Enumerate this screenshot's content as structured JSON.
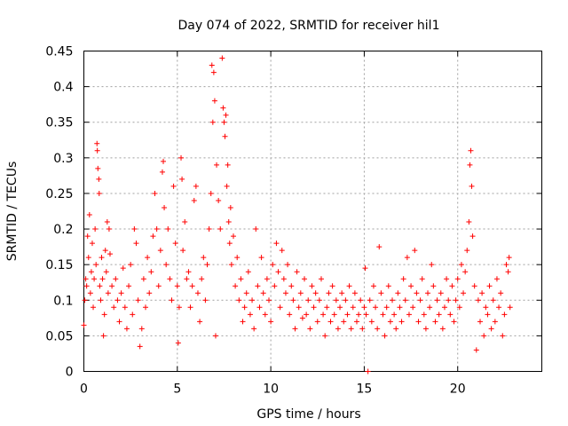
{
  "chart_data": {
    "type": "scatter",
    "title": "Day 074 of 2022, SRMTID for receiver hil1",
    "xlabel": "GPS time / hours",
    "ylabel": "SRMTID / TECUs",
    "xlim": [
      0,
      24.5
    ],
    "ylim": [
      0,
      0.45
    ],
    "xticks": [
      0,
      5,
      10,
      15,
      20
    ],
    "xtick_labels": [
      "0",
      "5",
      "10",
      "15",
      "20"
    ],
    "yticks": [
      0,
      0.05,
      0.1,
      0.15,
      0.2,
      0.25,
      0.3,
      0.35,
      0.4,
      0.45
    ],
    "ytick_labels": [
      "0",
      "0.05",
      "0.1",
      "0.15",
      "0.2",
      "0.25",
      "0.3",
      "0.35",
      "0.4",
      "0.45"
    ],
    "grid": true,
    "marker": "plus",
    "color": "#ff0000",
    "series": [
      {
        "name": "SRMTID",
        "points": [
          [
            0.0,
            0.065
          ],
          [
            0.05,
            0.1
          ],
          [
            0.1,
            0.13
          ],
          [
            0.15,
            0.12
          ],
          [
            0.2,
            0.19
          ],
          [
            0.25,
            0.16
          ],
          [
            0.3,
            0.22
          ],
          [
            0.35,
            0.11
          ],
          [
            0.4,
            0.14
          ],
          [
            0.45,
            0.18
          ],
          [
            0.5,
            0.09
          ],
          [
            0.55,
            0.13
          ],
          [
            0.6,
            0.2
          ],
          [
            0.65,
            0.15
          ],
          [
            0.7,
            0.32
          ],
          [
            0.72,
            0.31
          ],
          [
            0.75,
            0.285
          ],
          [
            0.8,
            0.27
          ],
          [
            0.82,
            0.25
          ],
          [
            0.85,
            0.12
          ],
          [
            0.9,
            0.1
          ],
          [
            0.95,
            0.16
          ],
          [
            1.0,
            0.13
          ],
          [
            1.05,
            0.05
          ],
          [
            1.1,
            0.08
          ],
          [
            1.15,
            0.17
          ],
          [
            1.2,
            0.14
          ],
          [
            1.25,
            0.21
          ],
          [
            1.3,
            0.11
          ],
          [
            1.35,
            0.2
          ],
          [
            1.4,
            0.165
          ],
          [
            1.5,
            0.12
          ],
          [
            1.6,
            0.09
          ],
          [
            1.7,
            0.13
          ],
          [
            1.8,
            0.1
          ],
          [
            1.9,
            0.07
          ],
          [
            2.0,
            0.11
          ],
          [
            2.1,
            0.145
          ],
          [
            2.2,
            0.09
          ],
          [
            2.3,
            0.06
          ],
          [
            2.4,
            0.12
          ],
          [
            2.5,
            0.15
          ],
          [
            2.6,
            0.08
          ],
          [
            2.7,
            0.2
          ],
          [
            2.8,
            0.18
          ],
          [
            2.9,
            0.1
          ],
          [
            3.0,
            0.035
          ],
          [
            3.1,
            0.06
          ],
          [
            3.2,
            0.13
          ],
          [
            3.3,
            0.09
          ],
          [
            3.4,
            0.16
          ],
          [
            3.5,
            0.11
          ],
          [
            3.6,
            0.14
          ],
          [
            3.7,
            0.19
          ],
          [
            3.8,
            0.25
          ],
          [
            3.9,
            0.2
          ],
          [
            4.0,
            0.12
          ],
          [
            4.1,
            0.17
          ],
          [
            4.2,
            0.28
          ],
          [
            4.25,
            0.295
          ],
          [
            4.3,
            0.23
          ],
          [
            4.4,
            0.15
          ],
          [
            4.5,
            0.2
          ],
          [
            4.6,
            0.13
          ],
          [
            4.7,
            0.1
          ],
          [
            4.8,
            0.26
          ],
          [
            4.9,
            0.18
          ],
          [
            5.0,
            0.12
          ],
          [
            5.05,
            0.04
          ],
          [
            5.1,
            0.09
          ],
          [
            5.2,
            0.3
          ],
          [
            5.25,
            0.27
          ],
          [
            5.3,
            0.17
          ],
          [
            5.4,
            0.21
          ],
          [
            5.5,
            0.13
          ],
          [
            5.6,
            0.14
          ],
          [
            5.7,
            0.09
          ],
          [
            5.8,
            0.12
          ],
          [
            5.9,
            0.24
          ],
          [
            6.0,
            0.26
          ],
          [
            6.1,
            0.11
          ],
          [
            6.2,
            0.07
          ],
          [
            6.3,
            0.13
          ],
          [
            6.4,
            0.16
          ],
          [
            6.5,
            0.1
          ],
          [
            6.6,
            0.15
          ],
          [
            6.7,
            0.2
          ],
          [
            6.8,
            0.25
          ],
          [
            6.85,
            0.43
          ],
          [
            6.9,
            0.35
          ],
          [
            6.95,
            0.42
          ],
          [
            7.0,
            0.38
          ],
          [
            7.05,
            0.05
          ],
          [
            7.1,
            0.29
          ],
          [
            7.2,
            0.24
          ],
          [
            7.3,
            0.2
          ],
          [
            7.4,
            0.44
          ],
          [
            7.45,
            0.37
          ],
          [
            7.5,
            0.35
          ],
          [
            7.55,
            0.33
          ],
          [
            7.6,
            0.36
          ],
          [
            7.65,
            0.26
          ],
          [
            7.7,
            0.29
          ],
          [
            7.75,
            0.21
          ],
          [
            7.8,
            0.18
          ],
          [
            7.85,
            0.23
          ],
          [
            7.9,
            0.15
          ],
          [
            8.0,
            0.19
          ],
          [
            8.1,
            0.12
          ],
          [
            8.2,
            0.16
          ],
          [
            8.3,
            0.1
          ],
          [
            8.4,
            0.13
          ],
          [
            8.5,
            0.07
          ],
          [
            8.6,
            0.09
          ],
          [
            8.7,
            0.11
          ],
          [
            8.8,
            0.14
          ],
          [
            8.9,
            0.08
          ],
          [
            9.0,
            0.1
          ],
          [
            9.1,
            0.06
          ],
          [
            9.2,
            0.2
          ],
          [
            9.3,
            0.12
          ],
          [
            9.4,
            0.09
          ],
          [
            9.5,
            0.16
          ],
          [
            9.6,
            0.11
          ],
          [
            9.7,
            0.08
          ],
          [
            9.8,
            0.13
          ],
          [
            9.9,
            0.1
          ],
          [
            10.0,
            0.07
          ],
          [
            10.1,
            0.15
          ],
          [
            10.2,
            0.12
          ],
          [
            10.3,
            0.18
          ],
          [
            10.4,
            0.14
          ],
          [
            10.5,
            0.09
          ],
          [
            10.6,
            0.17
          ],
          [
            10.7,
            0.13
          ],
          [
            10.8,
            0.11
          ],
          [
            10.9,
            0.15
          ],
          [
            11.0,
            0.08
          ],
          [
            11.1,
            0.12
          ],
          [
            11.2,
            0.1
          ],
          [
            11.3,
            0.06
          ],
          [
            11.4,
            0.14
          ],
          [
            11.5,
            0.09
          ],
          [
            11.6,
            0.11
          ],
          [
            11.7,
            0.075
          ],
          [
            11.8,
            0.13
          ],
          [
            11.9,
            0.08
          ],
          [
            12.0,
            0.1
          ],
          [
            12.1,
            0.06
          ],
          [
            12.2,
            0.12
          ],
          [
            12.3,
            0.09
          ],
          [
            12.4,
            0.11
          ],
          [
            12.5,
            0.07
          ],
          [
            12.6,
            0.1
          ],
          [
            12.7,
            0.13
          ],
          [
            12.8,
            0.08
          ],
          [
            12.9,
            0.05
          ],
          [
            13.0,
            0.09
          ],
          [
            13.1,
            0.11
          ],
          [
            13.2,
            0.07
          ],
          [
            13.3,
            0.12
          ],
          [
            13.4,
            0.08
          ],
          [
            13.5,
            0.1
          ],
          [
            13.6,
            0.06
          ],
          [
            13.7,
            0.09
          ],
          [
            13.8,
            0.11
          ],
          [
            13.9,
            0.07
          ],
          [
            14.0,
            0.1
          ],
          [
            14.1,
            0.08
          ],
          [
            14.2,
            0.12
          ],
          [
            14.3,
            0.06
          ],
          [
            14.4,
            0.09
          ],
          [
            14.5,
            0.11
          ],
          [
            14.6,
            0.07
          ],
          [
            14.7,
            0.08
          ],
          [
            14.8,
            0.1
          ],
          [
            14.9,
            0.06
          ],
          [
            15.0,
            0.09
          ],
          [
            15.05,
            0.145
          ],
          [
            15.1,
            0.08
          ],
          [
            15.2,
            0.0
          ],
          [
            15.3,
            0.1
          ],
          [
            15.4,
            0.07
          ],
          [
            15.5,
            0.12
          ],
          [
            15.6,
            0.09
          ],
          [
            15.7,
            0.06
          ],
          [
            15.8,
            0.175
          ],
          [
            15.9,
            0.11
          ],
          [
            16.0,
            0.08
          ],
          [
            16.1,
            0.05
          ],
          [
            16.2,
            0.09
          ],
          [
            16.3,
            0.12
          ],
          [
            16.4,
            0.07
          ],
          [
            16.5,
            0.1
          ],
          [
            16.6,
            0.08
          ],
          [
            16.7,
            0.06
          ],
          [
            16.8,
            0.11
          ],
          [
            16.9,
            0.09
          ],
          [
            17.0,
            0.07
          ],
          [
            17.1,
            0.13
          ],
          [
            17.2,
            0.1
          ],
          [
            17.3,
            0.16
          ],
          [
            17.4,
            0.08
          ],
          [
            17.5,
            0.12
          ],
          [
            17.6,
            0.09
          ],
          [
            17.7,
            0.17
          ],
          [
            17.8,
            0.11
          ],
          [
            17.9,
            0.07
          ],
          [
            18.0,
            0.1
          ],
          [
            18.1,
            0.13
          ],
          [
            18.2,
            0.08
          ],
          [
            18.3,
            0.06
          ],
          [
            18.4,
            0.11
          ],
          [
            18.5,
            0.09
          ],
          [
            18.6,
            0.15
          ],
          [
            18.7,
            0.12
          ],
          [
            18.8,
            0.07
          ],
          [
            18.9,
            0.1
          ],
          [
            19.0,
            0.08
          ],
          [
            19.1,
            0.11
          ],
          [
            19.2,
            0.06
          ],
          [
            19.3,
            0.09
          ],
          [
            19.4,
            0.13
          ],
          [
            19.5,
            0.1
          ],
          [
            19.6,
            0.08
          ],
          [
            19.7,
            0.12
          ],
          [
            19.8,
            0.07
          ],
          [
            19.9,
            0.1
          ],
          [
            20.0,
            0.13
          ],
          [
            20.1,
            0.09
          ],
          [
            20.2,
            0.15
          ],
          [
            20.3,
            0.11
          ],
          [
            20.4,
            0.14
          ],
          [
            20.5,
            0.17
          ],
          [
            20.6,
            0.21
          ],
          [
            20.65,
            0.29
          ],
          [
            20.7,
            0.31
          ],
          [
            20.75,
            0.26
          ],
          [
            20.8,
            0.19
          ],
          [
            20.9,
            0.12
          ],
          [
            21.0,
            0.03
          ],
          [
            21.1,
            0.1
          ],
          [
            21.2,
            0.07
          ],
          [
            21.3,
            0.11
          ],
          [
            21.4,
            0.05
          ],
          [
            21.5,
            0.09
          ],
          [
            21.6,
            0.08
          ],
          [
            21.7,
            0.12
          ],
          [
            21.8,
            0.06
          ],
          [
            21.9,
            0.1
          ],
          [
            22.0,
            0.07
          ],
          [
            22.1,
            0.13
          ],
          [
            22.2,
            0.09
          ],
          [
            22.3,
            0.11
          ],
          [
            22.4,
            0.05
          ],
          [
            22.5,
            0.08
          ],
          [
            22.6,
            0.15
          ],
          [
            22.7,
            0.14
          ],
          [
            22.75,
            0.16
          ],
          [
            22.8,
            0.09
          ]
        ]
      }
    ]
  }
}
